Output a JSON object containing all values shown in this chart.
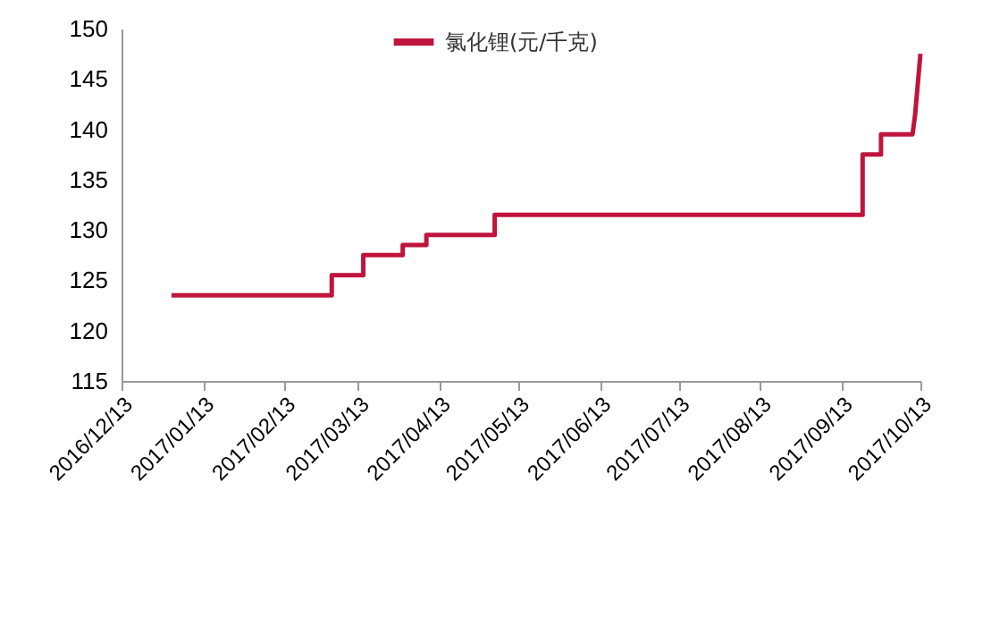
{
  "chart_data": {
    "type": "line",
    "x": [
      "2017-01-01",
      "2017-03-03",
      "2017-03-03",
      "2017-03-15",
      "2017-03-15",
      "2017-03-30",
      "2017-03-30",
      "2017-04-08",
      "2017-04-08",
      "2017-05-04",
      "2017-05-04",
      "2017-09-21",
      "2017-09-21",
      "2017-09-28",
      "2017-09-28",
      "2017-10-10",
      "2017-10-11",
      "2017-10-13"
    ],
    "series": [
      {
        "name": "氯化锂(元/千克)",
        "color": "#c0143c",
        "values": [
          123.5,
          123.5,
          125.5,
          125.5,
          127.5,
          127.5,
          128.5,
          128.5,
          129.5,
          129.5,
          131.5,
          131.5,
          137.5,
          137.5,
          139.5,
          139.5,
          141.5,
          147.5
        ]
      }
    ],
    "xlim": [
      "2016-12-13",
      "2017-10-13"
    ],
    "xticks": [
      {
        "value": "2016-12-13",
        "label": "2016/12/13"
      },
      {
        "value": "2017-01-13",
        "label": "2017/01/13"
      },
      {
        "value": "2017-02-13",
        "label": "2017/02/13"
      },
      {
        "value": "2017-03-13",
        "label": "2017/03/13"
      },
      {
        "value": "2017-04-13",
        "label": "2017/04/13"
      },
      {
        "value": "2017-05-13",
        "label": "2017/05/13"
      },
      {
        "value": "2017-06-13",
        "label": "2017/06/13"
      },
      {
        "value": "2017-07-13",
        "label": "2017/07/13"
      },
      {
        "value": "2017-08-13",
        "label": "2017/08/13"
      },
      {
        "value": "2017-09-13",
        "label": "2017/09/13"
      },
      {
        "value": "2017-10-13",
        "label": "2017/10/13"
      }
    ],
    "ylim": [
      115,
      150
    ],
    "yticks": [
      115,
      120,
      125,
      130,
      135,
      140,
      145,
      150
    ],
    "grid": false,
    "legend": "top",
    "marker": "none",
    "line_style": "solid"
  }
}
